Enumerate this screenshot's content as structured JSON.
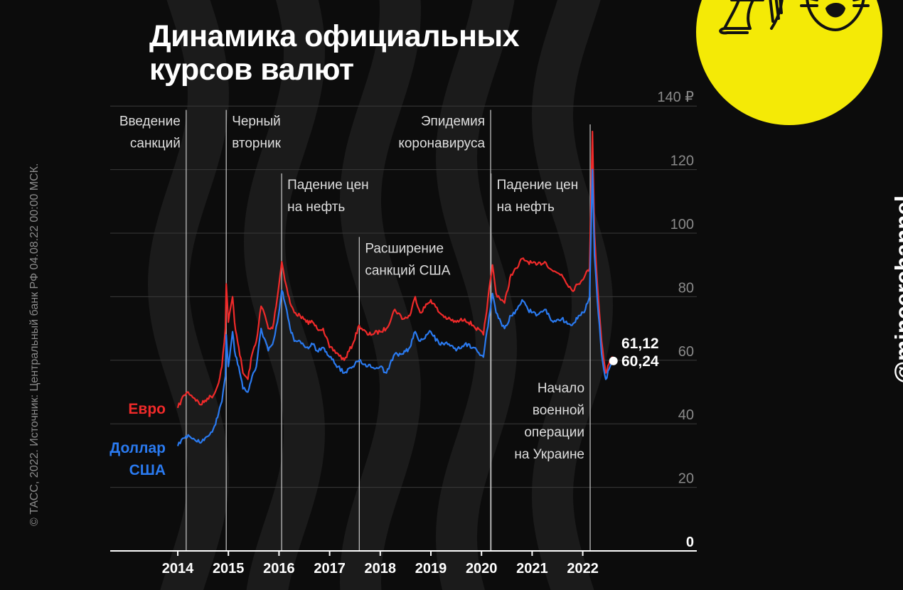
{
  "title": {
    "line1": "Динамика официальных",
    "line2": "курсов валют"
  },
  "source": "© ТАСС, 2022. Источник: Центральный банк РФ 04.08.22 00:00 МСК.",
  "handle": "@mincerchannel",
  "colors": {
    "background": "#0c0c0c",
    "euro": "#f02a2a",
    "usd": "#2a7af0",
    "logo_bg": "#f4ea06",
    "grid": "#3a3a3a",
    "text": "#ffffff",
    "muted": "#9a9a9a"
  },
  "logo": {
    "icons": [
      "meat-grinder-icon",
      "cat-face-icon"
    ]
  },
  "chart_data": {
    "type": "line",
    "title": "Динамика официальных курсов валют",
    "x_ticks": [
      "2014",
      "2015",
      "2016",
      "2017",
      "2018",
      "2019",
      "2020",
      "2021",
      "2022"
    ],
    "x_range": [
      "2014-01",
      "2022-08"
    ],
    "y_ticks": [
      0,
      20,
      40,
      60,
      80,
      100,
      120,
      140
    ],
    "y_top_label": "140 ₽",
    "ylim": [
      0,
      140
    ],
    "grid": true,
    "legend_placement": "left, inline",
    "series": [
      {
        "name": "Евро",
        "end_label": "61,12",
        "points": [
          [
            "2014-01-01",
            45
          ],
          [
            "2014-02-15",
            49
          ],
          [
            "2014-03-15",
            50
          ],
          [
            "2014-05-01",
            48
          ],
          [
            "2014-06-15",
            46
          ],
          [
            "2014-08-01",
            48
          ],
          [
            "2014-09-15",
            49
          ],
          [
            "2014-10-15",
            52
          ],
          [
            "2014-11-15",
            58
          ],
          [
            "2014-12-10",
            70
          ],
          [
            "2014-12-16",
            84
          ],
          [
            "2014-12-31",
            72
          ],
          [
            "2015-01-31",
            80
          ],
          [
            "2015-02-15",
            72
          ],
          [
            "2015-03-15",
            64
          ],
          [
            "2015-04-15",
            56
          ],
          [
            "2015-05-20",
            54
          ],
          [
            "2015-06-20",
            62
          ],
          [
            "2015-07-20",
            66
          ],
          [
            "2015-08-24",
            77
          ],
          [
            "2015-09-15",
            75
          ],
          [
            "2015-10-15",
            70
          ],
          [
            "2015-11-15",
            70
          ],
          [
            "2015-12-20",
            80
          ],
          [
            "2016-01-21",
            91
          ],
          [
            "2016-02-20",
            84
          ],
          [
            "2016-03-20",
            78
          ],
          [
            "2016-04-20",
            75
          ],
          [
            "2016-06-01",
            74
          ],
          [
            "2016-07-15",
            72
          ],
          [
            "2016-09-01",
            72
          ],
          [
            "2016-10-01",
            70
          ],
          [
            "2016-11-15",
            70
          ],
          [
            "2016-12-31",
            64
          ],
          [
            "2017-03-01",
            62
          ],
          [
            "2017-04-15",
            60
          ],
          [
            "2017-06-15",
            65
          ],
          [
            "2017-08-01",
            71
          ],
          [
            "2017-10-01",
            68
          ],
          [
            "2017-12-31",
            69
          ],
          [
            "2018-02-15",
            70
          ],
          [
            "2018-04-15",
            76
          ],
          [
            "2018-06-15",
            73
          ],
          [
            "2018-08-01",
            74
          ],
          [
            "2018-09-10",
            80
          ],
          [
            "2018-10-15",
            75
          ],
          [
            "2018-12-31",
            79
          ],
          [
            "2019-03-01",
            75
          ],
          [
            "2019-05-01",
            73
          ],
          [
            "2019-07-01",
            72
          ],
          [
            "2019-09-01",
            73
          ],
          [
            "2019-11-01",
            71
          ],
          [
            "2020-01-15",
            68
          ],
          [
            "2020-03-19",
            90
          ],
          [
            "2020-04-15",
            81
          ],
          [
            "2020-06-15",
            78
          ],
          [
            "2020-08-01",
            87
          ],
          [
            "2020-09-15",
            89
          ],
          [
            "2020-10-20",
            92
          ],
          [
            "2020-12-01",
            91
          ],
          [
            "2021-02-01",
            90
          ],
          [
            "2021-04-01",
            91
          ],
          [
            "2021-06-01",
            88
          ],
          [
            "2021-08-01",
            87
          ],
          [
            "2021-10-15",
            82
          ],
          [
            "2021-12-01",
            84
          ],
          [
            "2022-01-20",
            87
          ],
          [
            "2022-02-20",
            89
          ],
          [
            "2022-03-10",
            132
          ],
          [
            "2022-03-25",
            100
          ],
          [
            "2022-04-15",
            84
          ],
          [
            "2022-05-15",
            66
          ],
          [
            "2022-06-15",
            56
          ],
          [
            "2022-07-15",
            60
          ],
          [
            "2022-08-04",
            61.12
          ]
        ]
      },
      {
        "name": "Доллар США",
        "end_label": "60,24",
        "points": [
          [
            "2014-01-01",
            33
          ],
          [
            "2014-02-15",
            35.5
          ],
          [
            "2014-03-15",
            36.5
          ],
          [
            "2014-05-01",
            35
          ],
          [
            "2014-06-15",
            34
          ],
          [
            "2014-08-01",
            36
          ],
          [
            "2014-09-15",
            38.5
          ],
          [
            "2014-10-15",
            42
          ],
          [
            "2014-11-15",
            47
          ],
          [
            "2014-12-10",
            55
          ],
          [
            "2014-12-16",
            68
          ],
          [
            "2014-12-31",
            58
          ],
          [
            "2015-01-31",
            69
          ],
          [
            "2015-02-15",
            63
          ],
          [
            "2015-03-15",
            58
          ],
          [
            "2015-04-15",
            51
          ],
          [
            "2015-05-20",
            50
          ],
          [
            "2015-06-20",
            55
          ],
          [
            "2015-07-20",
            58
          ],
          [
            "2015-08-24",
            70
          ],
          [
            "2015-09-15",
            67
          ],
          [
            "2015-10-15",
            63
          ],
          [
            "2015-11-15",
            65
          ],
          [
            "2015-12-20",
            72
          ],
          [
            "2016-01-21",
            82
          ],
          [
            "2016-02-20",
            77
          ],
          [
            "2016-03-20",
            70
          ],
          [
            "2016-04-20",
            66
          ],
          [
            "2016-06-01",
            66
          ],
          [
            "2016-07-15",
            64
          ],
          [
            "2016-09-01",
            65
          ],
          [
            "2016-10-01",
            63
          ],
          [
            "2016-11-15",
            64
          ],
          [
            "2016-12-31",
            61
          ],
          [
            "2017-03-01",
            58
          ],
          [
            "2017-04-15",
            56
          ],
          [
            "2017-06-15",
            58
          ],
          [
            "2017-08-01",
            60
          ],
          [
            "2017-10-01",
            58
          ],
          [
            "2017-12-31",
            58
          ],
          [
            "2018-02-15",
            56
          ],
          [
            "2018-04-15",
            62
          ],
          [
            "2018-06-15",
            62
          ],
          [
            "2018-08-01",
            64
          ],
          [
            "2018-09-10",
            69
          ],
          [
            "2018-10-15",
            66
          ],
          [
            "2018-12-31",
            69
          ],
          [
            "2019-03-01",
            65
          ],
          [
            "2019-05-01",
            65
          ],
          [
            "2019-07-01",
            63
          ],
          [
            "2019-09-01",
            65
          ],
          [
            "2019-11-01",
            64
          ],
          [
            "2020-01-15",
            61
          ],
          [
            "2020-03-19",
            81
          ],
          [
            "2020-04-15",
            75
          ],
          [
            "2020-06-15",
            70
          ],
          [
            "2020-08-01",
            74
          ],
          [
            "2020-09-15",
            76
          ],
          [
            "2020-10-20",
            79
          ],
          [
            "2020-12-01",
            76
          ],
          [
            "2021-02-01",
            74
          ],
          [
            "2021-04-01",
            76
          ],
          [
            "2021-06-01",
            72
          ],
          [
            "2021-08-01",
            73
          ],
          [
            "2021-10-15",
            71
          ],
          [
            "2021-12-01",
            74
          ],
          [
            "2022-01-20",
            76
          ],
          [
            "2022-02-20",
            80
          ],
          [
            "2022-03-10",
            120
          ],
          [
            "2022-03-25",
            93
          ],
          [
            "2022-04-15",
            79
          ],
          [
            "2022-05-15",
            62
          ],
          [
            "2022-06-15",
            54
          ],
          [
            "2022-07-15",
            58
          ],
          [
            "2022-08-04",
            60.24
          ]
        ]
      }
    ],
    "annotations": [
      {
        "date": "2014-03-01",
        "lines": [
          "Введение",
          "санкций"
        ],
        "align": "end",
        "y": 137
      },
      {
        "date": "2014-12-16",
        "lines": [
          "Черный",
          "вторник"
        ],
        "align": "start",
        "y": 137
      },
      {
        "date": "2016-01-20",
        "lines": [
          "Падение цен",
          "на нефть"
        ],
        "align": "start",
        "y": 117
      },
      {
        "date": "2017-08-02",
        "lines": [
          "Расширение",
          "санкций США"
        ],
        "align": "start",
        "y": 97
      },
      {
        "date": "2020-03-06",
        "lines": [
          "Эпидемия",
          "коронавируса"
        ],
        "align": "end",
        "y": 137
      },
      {
        "date": "2020-03-09",
        "lines": [
          "Падение цен",
          "на нефть"
        ],
        "align": "start",
        "y": 117
      },
      {
        "date": "2022-02-24",
        "lines": [
          "Начало",
          "военной",
          "операции",
          "на Украине"
        ],
        "align": "end",
        "y": 53
      }
    ]
  }
}
